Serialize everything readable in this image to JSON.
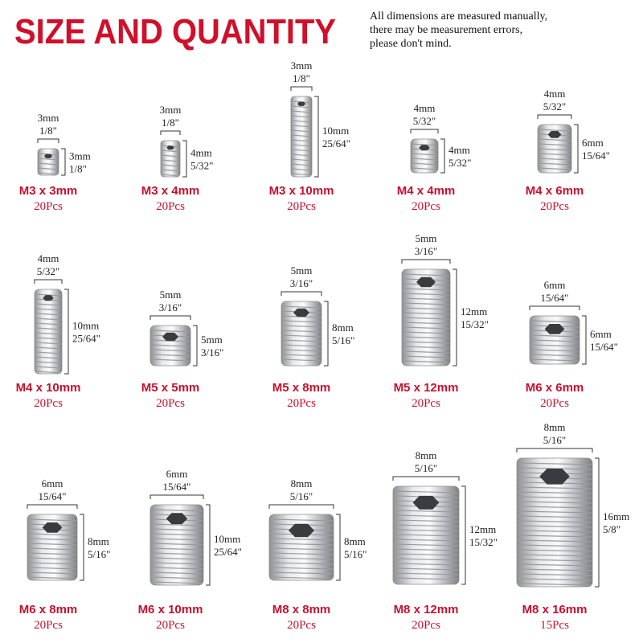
{
  "header": {
    "title": "SIZE AND QUANTITY",
    "note": [
      "All dimensions are measured manually,",
      "there may be measurement errors,",
      "please don't mind."
    ]
  },
  "items": [
    {
      "name": "M3 x 3mm",
      "qty": "20Pcs",
      "width_mm": "3mm",
      "width_in": "1/8\"",
      "length_mm": "3mm",
      "length_in": "1/8\""
    },
    {
      "name": "M3 x 4mm",
      "qty": "20Pcs",
      "width_mm": "3mm",
      "width_in": "1/8\"",
      "length_mm": "4mm",
      "length_in": "5/32\""
    },
    {
      "name": "M3 x 10mm",
      "qty": "20Pcs",
      "width_mm": "3mm",
      "width_in": "1/8\"",
      "length_mm": "10mm",
      "length_in": "25/64\""
    },
    {
      "name": "M4 x 4mm",
      "qty": "20Pcs",
      "width_mm": "4mm",
      "width_in": "5/32\"",
      "length_mm": "4mm",
      "length_in": "5/32\""
    },
    {
      "name": "M4 x 6mm",
      "qty": "20Pcs",
      "width_mm": "4mm",
      "width_in": "5/32\"",
      "length_mm": "6mm",
      "length_in": "15/64\""
    },
    {
      "name": "M4 x 10mm",
      "qty": "20Pcs",
      "width_mm": "4mm",
      "width_in": "5/32\"",
      "length_mm": "10mm",
      "length_in": "25/64\""
    },
    {
      "name": "M5 x 5mm",
      "qty": "20Pcs",
      "width_mm": "5mm",
      "width_in": "3/16\"",
      "length_mm": "5mm",
      "length_in": "3/16\""
    },
    {
      "name": "M5 x 8mm",
      "qty": "20Pcs",
      "width_mm": "5mm",
      "width_in": "3/16\"",
      "length_mm": "8mm",
      "length_in": "5/16\""
    },
    {
      "name": "M5 x 12mm",
      "qty": "20Pcs",
      "width_mm": "5mm",
      "width_in": "3/16\"",
      "length_mm": "12mm",
      "length_in": "15/32\""
    },
    {
      "name": "M6 x 6mm",
      "qty": "20Pcs",
      "width_mm": "6mm",
      "width_in": "15/64\"",
      "length_mm": "6mm",
      "length_in": "15/64\""
    },
    {
      "name": "M6 x 8mm",
      "qty": "20Pcs",
      "width_mm": "6mm",
      "width_in": "15/64\"",
      "length_mm": "8mm",
      "length_in": "5/16\""
    },
    {
      "name": "M6 x 10mm",
      "qty": "20Pcs",
      "width_mm": "6mm",
      "width_in": "15/64\"",
      "length_mm": "10mm",
      "length_in": "25/64\""
    },
    {
      "name": "M8 x 8mm",
      "qty": "20Pcs",
      "width_mm": "8mm",
      "width_in": "5/16\"",
      "length_mm": "8mm",
      "length_in": "5/16\""
    },
    {
      "name": "M8 x 12mm",
      "qty": "20Pcs",
      "width_mm": "8mm",
      "width_in": "5/16\"",
      "length_mm": "12mm",
      "length_in": "15/32\""
    },
    {
      "name": "M8 x 16mm",
      "qty": "15Pcs",
      "width_mm": "8mm",
      "width_in": "5/16\"",
      "length_mm": "16mm",
      "length_in": "5/8\""
    }
  ]
}
